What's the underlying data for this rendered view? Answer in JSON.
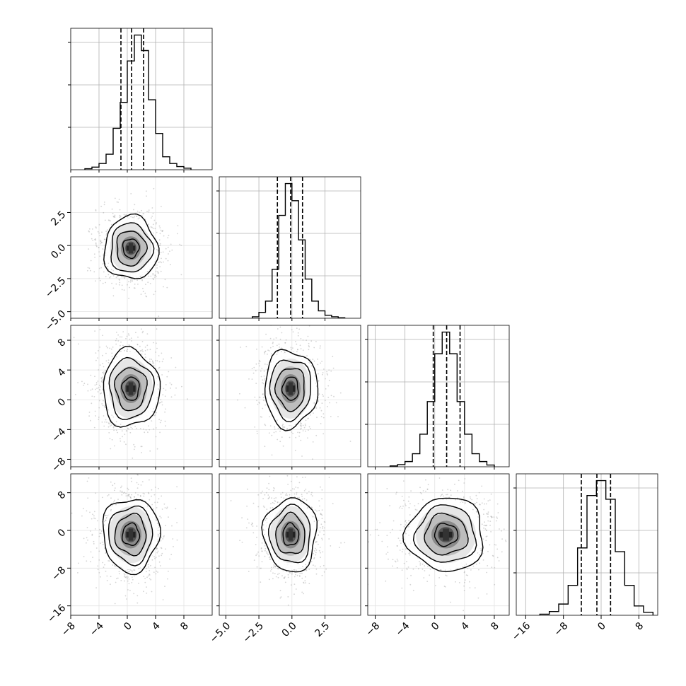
{
  "chart_data": {
    "type": "corner",
    "title": "",
    "parameters": [
      {
        "label": "",
        "range": [
          -8,
          12
        ],
        "ticks": [
          -8,
          -4,
          0,
          4,
          8
        ],
        "tick_labels": [
          "−8",
          "−4",
          "0",
          "4",
          "8"
        ]
      },
      {
        "label": "",
        "range": [
          -5.5,
          5.2
        ],
        "ticks": [
          -5.0,
          -2.5,
          0.0,
          2.5
        ],
        "tick_labels": [
          "−5.0",
          "−2.5",
          "0.0",
          "2.5"
        ]
      },
      {
        "label": "",
        "range": [
          -9,
          10
        ],
        "ticks": [
          -8,
          -4,
          0,
          4,
          8
        ],
        "tick_labels": [
          "−8",
          "−4",
          "0",
          "4",
          "8"
        ]
      },
      {
        "label": "",
        "range": [
          -18,
          12
        ],
        "ticks": [
          -16,
          -8,
          0,
          8
        ],
        "tick_labels": [
          "−16",
          "−8",
          "0",
          "8"
        ]
      }
    ],
    "marginals": [
      {
        "quantiles": [
          -0.9,
          0.6,
          2.3
        ],
        "bin_edges": [
          -6,
          -5,
          -4,
          -3,
          -2,
          -1,
          0,
          1,
          2,
          3,
          4,
          5,
          6,
          7,
          8,
          9
        ],
        "counts": [
          0.02,
          0.05,
          0.12,
          0.3,
          0.8,
          1.3,
          2.1,
          2.6,
          2.3,
          1.35,
          0.7,
          0.25,
          0.12,
          0.06,
          0.03
        ]
      },
      {
        "quantiles": [
          -1.1,
          -0.1,
          0.8
        ],
        "bin_edges": [
          -3.0,
          -2.5,
          -2.0,
          -1.5,
          -1.0,
          -0.5,
          0.0,
          0.5,
          1.0,
          1.5,
          2.0,
          2.5,
          3.0,
          3.5,
          4.0
        ],
        "counts": [
          0.03,
          0.12,
          0.35,
          1.0,
          2.1,
          2.75,
          2.4,
          1.6,
          0.8,
          0.35,
          0.15,
          0.06,
          0.03,
          0.01
        ]
      },
      {
        "quantiles": [
          -0.2,
          1.6,
          3.4
        ],
        "bin_edges": [
          -6,
          -5,
          -4,
          -3,
          -2,
          -1,
          0,
          1,
          2,
          3,
          4,
          5,
          6,
          7,
          8
        ],
        "counts": [
          0.02,
          0.05,
          0.12,
          0.3,
          0.75,
          1.5,
          2.6,
          3.1,
          2.6,
          1.5,
          0.75,
          0.3,
          0.12,
          0.04
        ]
      },
      {
        "quantiles": [
          -4.2,
          -0.9,
          2.0
        ],
        "bin_edges": [
          -13,
          -11,
          -9,
          -7,
          -5,
          -3,
          -1,
          1,
          3,
          5,
          7,
          9,
          11
        ],
        "counts": [
          0.03,
          0.1,
          0.3,
          0.8,
          1.8,
          3.2,
          3.6,
          3.1,
          1.7,
          0.8,
          0.25,
          0.08
        ]
      }
    ],
    "joint_2d": [
      {
        "x_param": 0,
        "y_param": 1,
        "center": [
          0.5,
          -0.2
        ],
        "sd": [
          1.9,
          1.2
        ]
      },
      {
        "x_param": 0,
        "y_param": 2,
        "center": [
          0.5,
          1.5
        ],
        "sd": [
          2.0,
          2.6
        ]
      },
      {
        "x_param": 1,
        "y_param": 2,
        "center": [
          -0.1,
          1.5
        ],
        "sd": [
          1.0,
          2.6
        ]
      },
      {
        "x_param": 0,
        "y_param": 3,
        "center": [
          0.5,
          -0.9
        ],
        "sd": [
          2.0,
          3.9
        ]
      },
      {
        "x_param": 1,
        "y_param": 3,
        "center": [
          -0.1,
          -0.9
        ],
        "sd": [
          1.0,
          3.9
        ]
      },
      {
        "x_param": 2,
        "y_param": 3,
        "center": [
          1.5,
          -0.9
        ],
        "sd": [
          2.6,
          3.9
        ]
      }
    ],
    "grid": true,
    "colors": {
      "line": "#000000",
      "grid": "#b0b0b0",
      "points": "#a0a0a0",
      "fill_dark": "#222222"
    }
  }
}
